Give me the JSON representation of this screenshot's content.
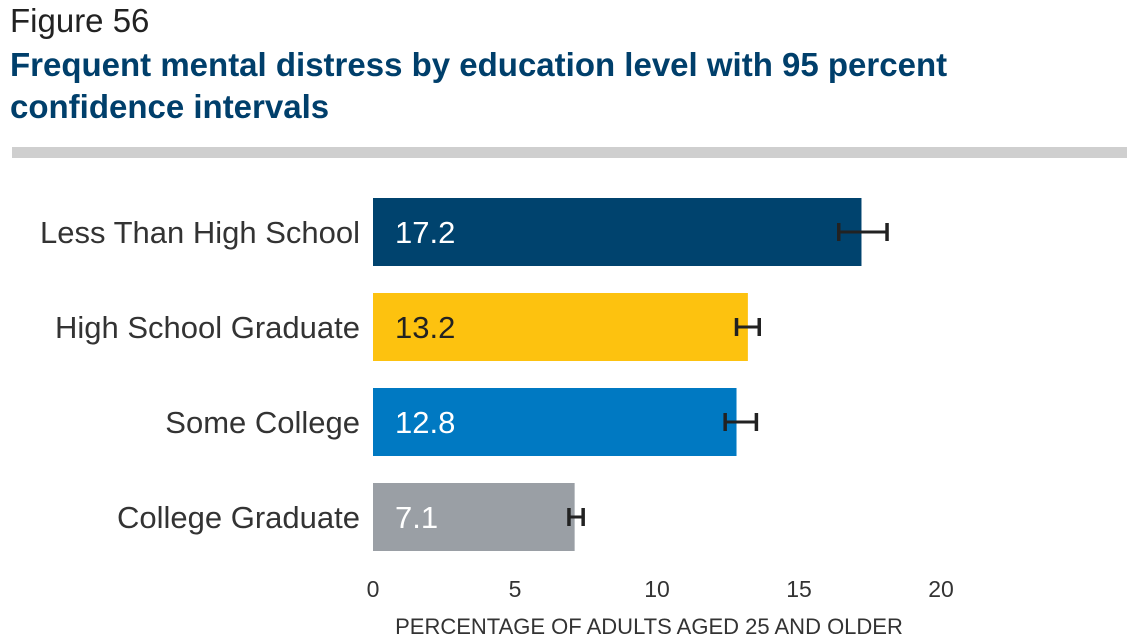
{
  "figure_label": "Figure 56",
  "title": "Frequent mental distress by education level with 95 percent confidence intervals",
  "chart_data": {
    "type": "bar",
    "orientation": "horizontal",
    "categories": [
      "Less Than High School",
      "High School Graduate",
      "Some College",
      "College Graduate"
    ],
    "values": [
      17.2,
      13.2,
      12.8,
      7.1
    ],
    "value_labels": [
      "17.2",
      "13.2",
      "12.8",
      "7.1"
    ],
    "ci_low": [
      16.4,
      12.8,
      12.4,
      6.9
    ],
    "ci_high": [
      18.1,
      13.6,
      13.5,
      7.4
    ],
    "colors": [
      "#00436e",
      "#fdc20f",
      "#0079c2",
      "#9a9fa5"
    ],
    "label_colors": [
      "#ffffff",
      "#222222",
      "#ffffff",
      "#ffffff"
    ],
    "xlabel": "PERCENTAGE OF ADULTS AGED 25 AND OLDER",
    "xlim": [
      0,
      20
    ],
    "xticks": [
      0,
      5,
      10,
      15,
      20
    ],
    "grid": false,
    "legend": "none"
  }
}
